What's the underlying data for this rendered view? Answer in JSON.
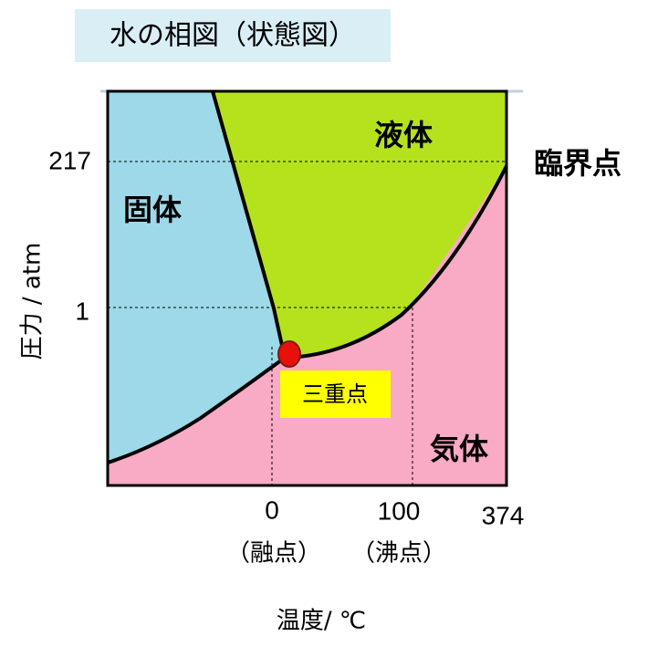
{
  "title": "水の相図（状態図）",
  "regions": {
    "solid": "固体",
    "liquid": "液体",
    "gas": "気体"
  },
  "points": {
    "critical": "臨界点",
    "triple": "三重点"
  },
  "y_axis": {
    "label": "圧力 / atm",
    "ticks": [
      "217",
      "1"
    ]
  },
  "x_axis": {
    "label": "温度/ ℃",
    "ticks": [
      "0",
      "100",
      "374"
    ],
    "notes": [
      "（融点）",
      "（沸点）"
    ]
  }
}
